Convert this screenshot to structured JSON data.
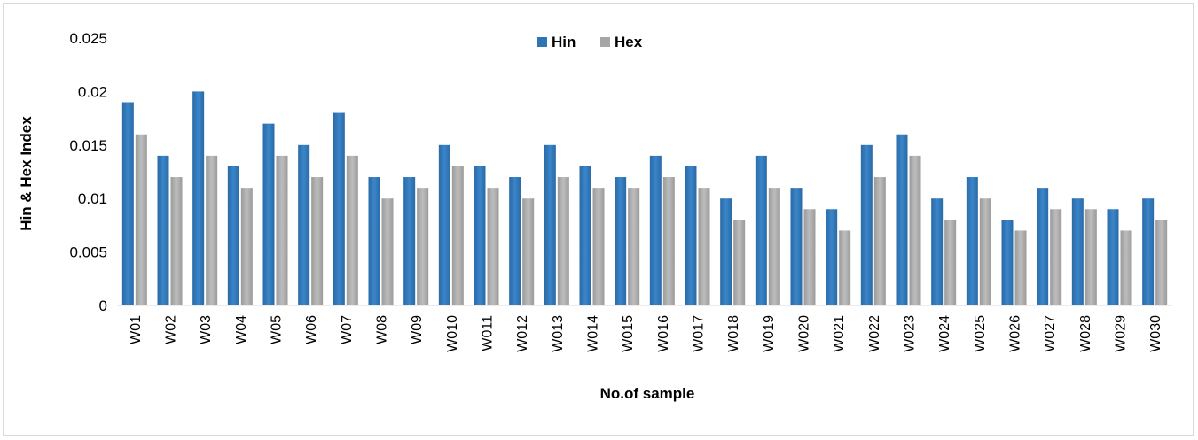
{
  "chart_data": {
    "type": "bar",
    "title": "",
    "xlabel": "No.of sample",
    "ylabel": "Hin & Hex Index",
    "ylim": [
      0,
      0.025
    ],
    "yticks": [
      "0",
      "0.005",
      "0.01",
      "0.015",
      "0.02",
      "0.025"
    ],
    "grid": false,
    "legend_position": "top-center",
    "categories": [
      "W01",
      "W02",
      "W03",
      "W04",
      "W05",
      "W06",
      "W07",
      "W08",
      "W09",
      "W010",
      "W011",
      "W012",
      "W013",
      "W014",
      "W015",
      "W016",
      "W017",
      "W018",
      "W019",
      "W020",
      "W021",
      "W022",
      "W023",
      "W024",
      "W025",
      "W026",
      "W027",
      "W028",
      "W029",
      "W030"
    ],
    "series": [
      {
        "name": "Hin",
        "color": "#2e75b6",
        "values": [
          0.019,
          0.014,
          0.02,
          0.013,
          0.017,
          0.015,
          0.018,
          0.012,
          0.012,
          0.015,
          0.013,
          0.012,
          0.015,
          0.013,
          0.012,
          0.014,
          0.013,
          0.01,
          0.014,
          0.011,
          0.009,
          0.015,
          0.016,
          0.01,
          0.012,
          0.008,
          0.011,
          0.01,
          0.009,
          0.01
        ]
      },
      {
        "name": "Hex",
        "color": "#a6a6a6",
        "values": [
          0.016,
          0.012,
          0.014,
          0.011,
          0.014,
          0.012,
          0.014,
          0.01,
          0.011,
          0.013,
          0.011,
          0.01,
          0.012,
          0.011,
          0.011,
          0.012,
          0.011,
          0.008,
          0.011,
          0.009,
          0.007,
          0.012,
          0.014,
          0.008,
          0.01,
          0.007,
          0.009,
          0.009,
          0.007,
          0.008
        ]
      }
    ]
  }
}
